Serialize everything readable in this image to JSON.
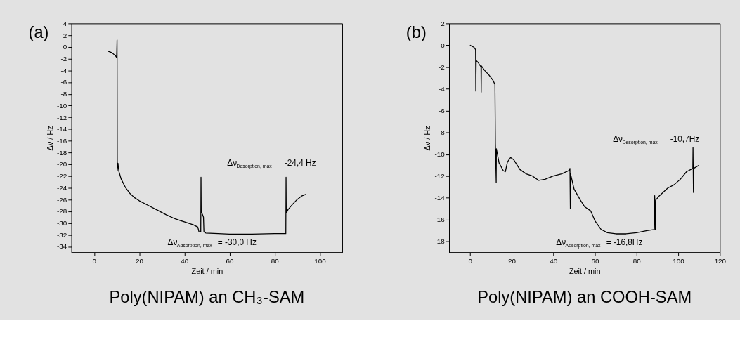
{
  "chart_data": [
    {
      "type": "line",
      "title": "Poly(NIPAM) an CH₃-SAM",
      "xlabel": "Zeit / min",
      "ylabel": "Δν / Hz",
      "series": [
        {
          "color": "#000000",
          "x": [
            6,
            8,
            9.5,
            10,
            10.2,
            10.3,
            10.6,
            11,
            12,
            14,
            16,
            18,
            20,
            24,
            28,
            32,
            36,
            40,
            44,
            46,
            46.5,
            47.3,
            47.4,
            47.5,
            48,
            48.5,
            48.7,
            49.5,
            55,
            60,
            70,
            80,
            85,
            85.1,
            85.2,
            86,
            88,
            90,
            92,
            94
          ],
          "values": [
            -0.7,
            -1,
            -1.5,
            -1.8,
            1.2,
            -21,
            -19.8,
            -21.2,
            -22.5,
            -24,
            -25,
            -25.7,
            -26.2,
            -27,
            -27.8,
            -28.6,
            -29.3,
            -29.8,
            -30.3,
            -30.7,
            -31.5,
            -31.5,
            -22.2,
            -27.8,
            -28.5,
            -29,
            -31.5,
            -31.7,
            -31.8,
            -31.9,
            -31.9,
            -31.8,
            -31.8,
            -22.2,
            -28.3,
            -27.7,
            -26.8,
            -26,
            -25.4,
            -25.1
          ]
        }
      ],
      "xlim": [
        -10,
        110
      ],
      "xticks": [
        0,
        20,
        40,
        60,
        80,
        100
      ],
      "ylim": [
        -35,
        4
      ],
      "yticks": [
        -34,
        -32,
        -30,
        -28,
        -26,
        -24,
        -22,
        -20,
        -18,
        -16,
        -14,
        -12,
        -10,
        -8,
        -6,
        -4,
        -2,
        0,
        2,
        4
      ],
      "grid": false,
      "annotations": [
        "(a)",
        "Δν$_{Desorption, max}$ = -24,4 Hz",
        "Δν$_{Adsorption, max}$ = -30,0 Hz"
      ]
    },
    {
      "type": "line",
      "title": "Poly(NIPAM) an COOH-SAM",
      "xlabel": "Zeit / min",
      "ylabel": "Δν / Hz",
      "series": [
        {
          "color": "#000000",
          "x": [
            0,
            2,
            2.7,
            2.8,
            3,
            4,
            5.3,
            5.4,
            5.5,
            7,
            9,
            11,
            12,
            12.2,
            12.6,
            12.7,
            14,
            16,
            17,
            18,
            19.5,
            21,
            24,
            27,
            30,
            33,
            36,
            40,
            44,
            47.5,
            48,
            48.2,
            48.3,
            50,
            53,
            55,
            58,
            60,
            63,
            66,
            70,
            75,
            80,
            85,
            88.5,
            88.7,
            89,
            89.2,
            91,
            95,
            98,
            101,
            104,
            107,
            107.1,
            107.3,
            107.4,
            110
          ],
          "values": [
            0,
            -0.2,
            -0.4,
            -4.2,
            -1.4,
            -1.6,
            -2.0,
            -4.3,
            -1.9,
            -2.3,
            -2.7,
            -3.2,
            -3.6,
            -9,
            -12.6,
            -9.5,
            -10.8,
            -11.5,
            -11.6,
            -10.7,
            -10.3,
            -10.5,
            -11.4,
            -11.8,
            -12,
            -12.4,
            -12.3,
            -12,
            -11.8,
            -11.5,
            -11.3,
            -15,
            -11.8,
            -13.2,
            -14.2,
            -14.8,
            -15.2,
            -16.1,
            -16.9,
            -17.2,
            -17.3,
            -17.3,
            -17.2,
            -17,
            -16.9,
            -13.8,
            -16.9,
            -14.2,
            -13.8,
            -13.1,
            -12.8,
            -12.3,
            -11.6,
            -11.3,
            -9.4,
            -13.5,
            -11.3,
            -11
          ]
        }
      ],
      "xlim": [
        -10,
        120
      ],
      "xticks": [
        0,
        20,
        40,
        60,
        80,
        100,
        120
      ],
      "ylim": [
        -19,
        2
      ],
      "yticks": [
        -18,
        -16,
        -14,
        -12,
        -10,
        -8,
        -6,
        -4,
        -2,
        0,
        2
      ],
      "grid": false,
      "annotations": [
        "(b)",
        "Δν$_{Desorption, max}$ = -10,7Hz",
        "Δν$_{Adsorption, max}$ = -16,8Hz"
      ]
    }
  ]
}
